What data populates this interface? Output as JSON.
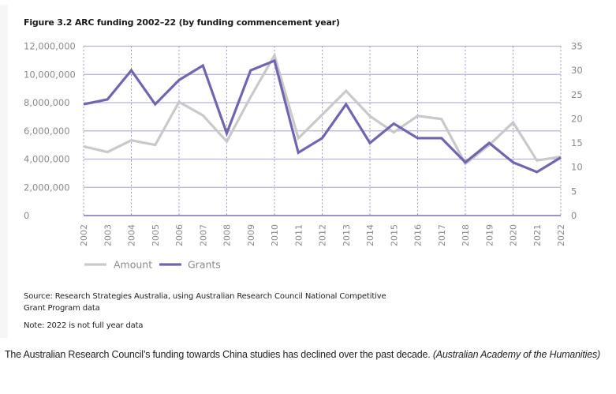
{
  "figure": {
    "title": "Figure 3.2 ARC funding 2002–22 (by funding commencement year)",
    "source": "Source: Research Strategies Australia, using Australian Research Council National Competitive Grant Program data",
    "note": "Note: 2022 is not full year data"
  },
  "caption": {
    "text": "The Australian Research Council’s funding towards China studies has declined over the past decade.",
    "attribution": "(Australian Academy of the Humanities)"
  },
  "chart_data": {
    "type": "line",
    "title": "Figure 3.2 ARC funding 2002–22 (by funding commencement year)",
    "xlabel": "",
    "ylabel_left": "Amount",
    "ylabel_right": "Grants",
    "x": [
      "2002",
      "2003",
      "2004",
      "2005",
      "2006",
      "2007",
      "2008",
      "2009",
      "2010",
      "2011",
      "2012",
      "2013",
      "2014",
      "2015",
      "2016",
      "2017",
      "2018",
      "2019",
      "2020",
      "2021",
      "2022"
    ],
    "ylim_left": [
      0,
      12000000
    ],
    "ylim_right": [
      0,
      35
    ],
    "yticks_left": [
      "0",
      "2,000,000",
      "4,000,000",
      "6,000,000",
      "8,000,000",
      "10,000,000",
      "12,000,000"
    ],
    "yticks_left_values": [
      0,
      2000000,
      4000000,
      6000000,
      8000000,
      10000000,
      12000000
    ],
    "yticks_right": [
      "0",
      "5",
      "10",
      "15",
      "20",
      "25",
      "30",
      "35"
    ],
    "yticks_right_values": [
      0,
      5,
      10,
      15,
      20,
      25,
      30,
      35
    ],
    "grid": true,
    "legend_position": "bottom-left",
    "series": [
      {
        "name": "Amount",
        "axis": "left",
        "color": "#c9c9c9",
        "values": [
          4900000,
          4500000,
          5330000,
          5000000,
          8050000,
          7100000,
          5250000,
          8400000,
          11350000,
          5480000,
          7150000,
          8830000,
          7050000,
          5900000,
          7060000,
          6840000,
          3670000,
          5000000,
          6600000,
          3900000,
          4170000
        ]
      },
      {
        "name": "Grants",
        "axis": "right",
        "color": "#7265b0",
        "values": [
          23,
          24,
          30,
          23,
          28,
          31,
          17,
          30,
          32,
          13,
          16,
          23,
          15,
          19,
          16,
          16,
          11,
          15,
          11,
          9,
          12
        ]
      }
    ]
  },
  "colors": {
    "grid": "#b7b1df",
    "axis": "#7a70b8",
    "vgrid": "#9e96d2"
  }
}
